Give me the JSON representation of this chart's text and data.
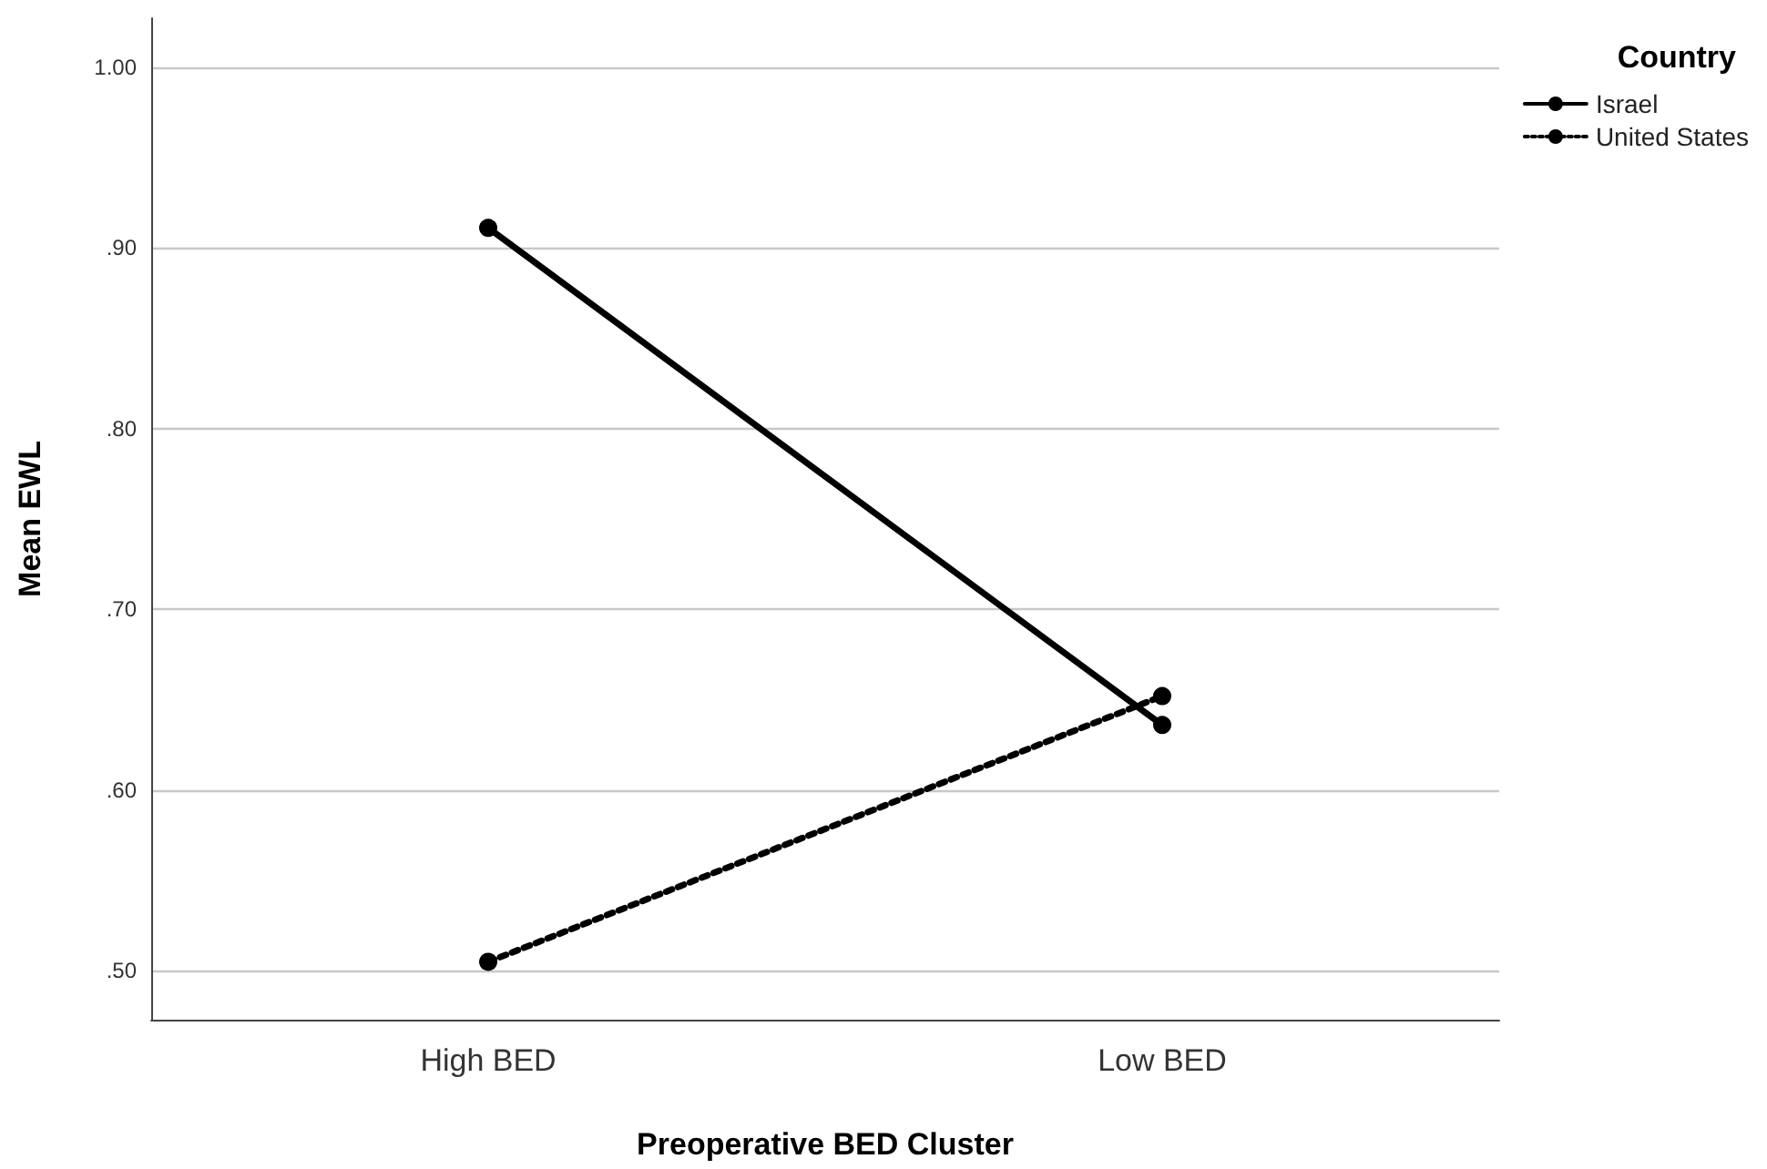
{
  "chart_data": {
    "type": "line",
    "xlabel": "Preoperative BED Cluster",
    "ylabel": "Mean EWL",
    "legend_title": "Country",
    "categories": [
      "High BED",
      "Low BED"
    ],
    "series": [
      {
        "name": "Israel",
        "color": "#000000",
        "values": [
          0.911,
          0.636
        ],
        "line_style": "solid"
      },
      {
        "name": "United States",
        "color": "#000000",
        "values": [
          0.505,
          0.652
        ],
        "line_style": "dotted"
      }
    ],
    "ylim": [
      0.473,
      1.027
    ],
    "yticks": [
      {
        "value": 0.5,
        "label": ".50"
      },
      {
        "value": 0.6,
        "label": ".60"
      },
      {
        "value": 0.7,
        "label": ".70"
      },
      {
        "value": 0.8,
        "label": ".80"
      },
      {
        "value": 0.9,
        "label": ".90"
      },
      {
        "value": 1.0,
        "label": "1.00"
      }
    ],
    "grid": "y",
    "legend": "top right",
    "marker": "circle"
  }
}
